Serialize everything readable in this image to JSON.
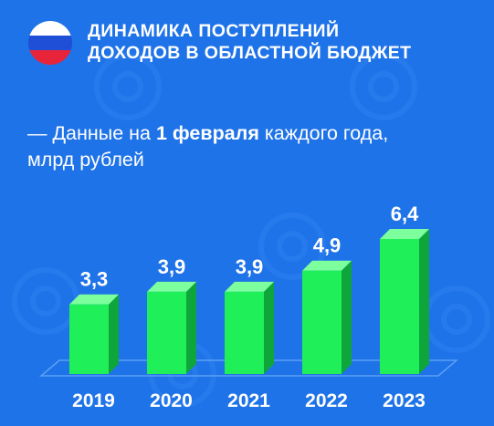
{
  "header": {
    "title_line1": "ДИНАМИКА ПОСТУПЛЕНИЙ",
    "title_line2": "ДОХОДОВ В ОБЛАСТНОЙ БЮДЖЕТ",
    "subtitle_prefix": "— Данные на ",
    "subtitle_bold": "1 февраля",
    "subtitle_suffix": " каждого года,",
    "subtitle_line2": "млрд рублей"
  },
  "colors": {
    "background": "#1f73e8",
    "bar_front": "#1ff05a",
    "bar_side": "#0ea63a",
    "bar_top": "#7cff9c",
    "flag_white": "#ffffff",
    "flag_blue": "#1f4fd6",
    "flag_red": "#e8243a"
  },
  "chart_data": {
    "type": "bar",
    "categories": [
      "2019",
      "2020",
      "2021",
      "2022",
      "2023"
    ],
    "values": [
      3.3,
      3.9,
      3.9,
      4.9,
      6.4
    ],
    "value_labels": [
      "3,3",
      "3,9",
      "3,9",
      "4,9",
      "6,4"
    ],
    "title": "ДИНАМИКА ПОСТУПЛЕНИЙ ДОХОДОВ В ОБЛАСТНОЙ БЮДЖЕТ",
    "ylabel": "",
    "xlabel": "",
    "ylim": [
      0,
      6.4
    ],
    "grid": false
  }
}
